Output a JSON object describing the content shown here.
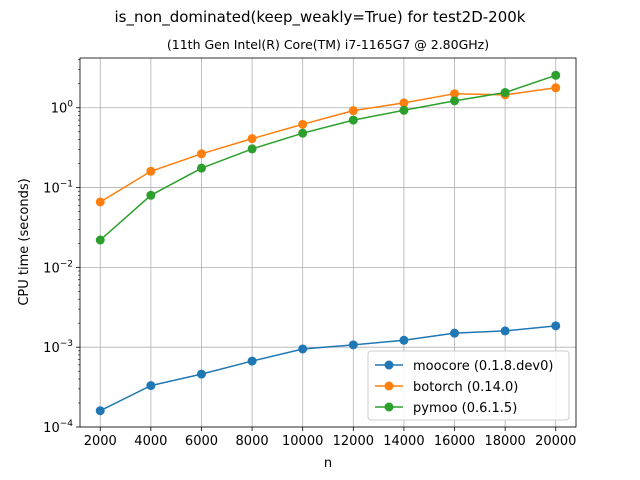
{
  "chart_data": {
    "type": "line",
    "title": "is_non_dominated(keep_weakly=True) for test2D-200k",
    "subtitle": "(11th Gen Intel(R) Core(TM) i7-1165G7 @ 2.80GHz)",
    "xlabel": "n",
    "ylabel": "CPU time (seconds)",
    "yscale": "log",
    "ylim": [
      0.0001,
      4.2
    ],
    "xlim": [
      1200,
      20800
    ],
    "grid": true,
    "legend_position": "lower-right",
    "x": [
      2000,
      4000,
      6000,
      8000,
      10000,
      12000,
      14000,
      16000,
      18000,
      20000
    ],
    "x_tick_labels": [
      "2000",
      "4000",
      "6000",
      "8000",
      "10000",
      "12000",
      "14000",
      "16000",
      "18000",
      "20000"
    ],
    "y_ticks": [
      {
        "value": 0.0001,
        "base": "10",
        "exp": "−4"
      },
      {
        "value": 0.001,
        "base": "10",
        "exp": "−3"
      },
      {
        "value": 0.01,
        "base": "10",
        "exp": "−2"
      },
      {
        "value": 0.1,
        "base": "10",
        "exp": "−1"
      },
      {
        "value": 1,
        "base": "10",
        "exp": "0"
      }
    ],
    "series": [
      {
        "name": "moocore (0.1.8.dev0)",
        "color": "#1f77b4",
        "values": [
          0.00016,
          0.00033,
          0.00046,
          0.00067,
          0.00095,
          0.00107,
          0.00122,
          0.0015,
          0.0016,
          0.00185
        ]
      },
      {
        "name": "botorch (0.14.0)",
        "color": "#ff7f0e",
        "values": [
          0.066,
          0.16,
          0.265,
          0.41,
          0.62,
          0.92,
          1.15,
          1.5,
          1.45,
          1.78
        ]
      },
      {
        "name": "pymoo (0.6.1.5)",
        "color": "#2ca02c",
        "values": [
          0.022,
          0.08,
          0.175,
          0.305,
          0.48,
          0.7,
          0.93,
          1.22,
          1.55,
          2.55
        ]
      }
    ]
  }
}
